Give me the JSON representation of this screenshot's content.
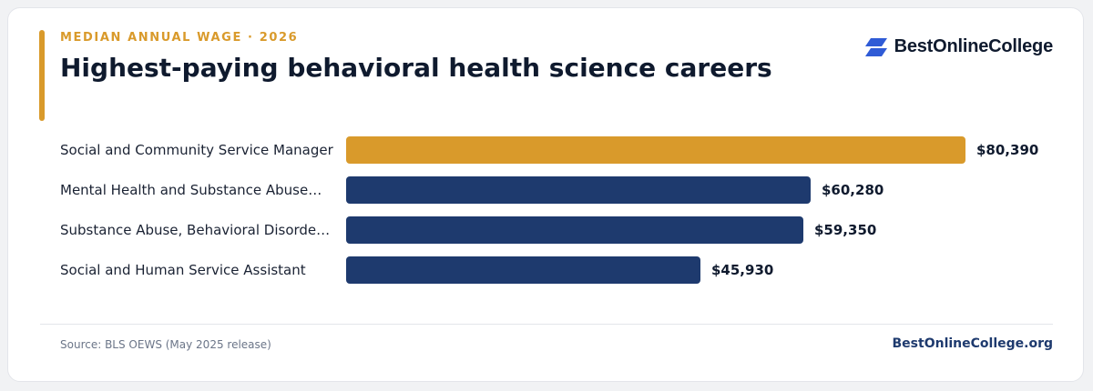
{
  "header": {
    "eyebrow": "MEDIAN ANNUAL WAGE · 2026",
    "title": "Highest-paying behavioral health science careers"
  },
  "brand": {
    "name": "BestOnlineCollege",
    "icon": "stacked-parallelogram-logo-icon",
    "icon_color": "#2f5bd6"
  },
  "colors": {
    "highlight": "#d99a2b",
    "bar": "#1e3a6e",
    "accent": "#d99a2b"
  },
  "chart_data": {
    "type": "bar",
    "orientation": "horizontal",
    "categories": [
      "Social and Community Service Manager",
      "Mental Health and Substance Abuse…",
      "Substance Abuse, Behavioral Disorde…",
      "Social and Human Service Assistant"
    ],
    "values": [
      80390,
      60280,
      59350,
      45930
    ],
    "value_labels": [
      "$80,390",
      "$60,280",
      "$59,350",
      "$45,930"
    ],
    "highlight_index": 0,
    "xlim": [
      0,
      80390
    ],
    "grid": false,
    "legend": "none"
  },
  "footer": {
    "source": "Source: BLS OEWS (May 2025 release)",
    "site": "BestOnlineCollege.org"
  }
}
